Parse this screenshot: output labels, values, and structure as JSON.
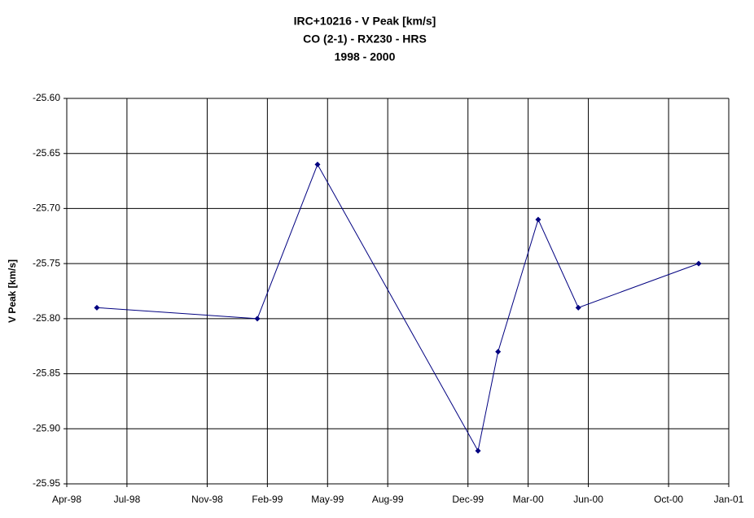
{
  "chart_data": {
    "type": "line",
    "title": [
      "IRC+10216 - V Peak [km/s]",
      "CO (2-1) - RX230 - HRS",
      "1998 - 2000"
    ],
    "y_label": "V Peak [km/s]",
    "x": [
      "1998-05",
      "1999-01",
      "1999-04",
      "1999-12",
      "2000-01",
      "2000-03",
      "2000-05",
      "2000-11"
    ],
    "series": [
      {
        "color": "#000080",
        "values": [
          -25.79,
          -25.8,
          -25.66,
          -25.92,
          -25.83,
          -25.71,
          -25.79,
          -25.75
        ]
      }
    ],
    "xlim": [
      "1998-04",
      "2001-01"
    ],
    "xticks": [
      {
        "value": "1998-04",
        "label": "Apr-98"
      },
      {
        "value": "1998-07",
        "label": "Jul-98"
      },
      {
        "value": "1998-11",
        "label": "Nov-98"
      },
      {
        "value": "1999-02",
        "label": "Feb-99"
      },
      {
        "value": "1999-05",
        "label": "May-99"
      },
      {
        "value": "1999-08",
        "label": "Aug-99"
      },
      {
        "value": "1999-12",
        "label": "Dec-99"
      },
      {
        "value": "2000-03",
        "label": "Mar-00"
      },
      {
        "value": "2000-06",
        "label": "Jun-00"
      },
      {
        "value": "2000-10",
        "label": "Oct-00"
      },
      {
        "value": "2001-01",
        "label": "Jan-01"
      }
    ],
    "ylim": [
      -25.95,
      -25.6
    ],
    "yticks": [
      {
        "value": -25.6,
        "label": "-25.60"
      },
      -25.65,
      {
        "value": -25.7,
        "label": "-25.70"
      },
      -25.75,
      {
        "value": -25.8,
        "label": "-25.80"
      },
      -25.85,
      {
        "value": -25.9,
        "label": "-25.90"
      },
      -25.95
    ],
    "grid": true
  }
}
